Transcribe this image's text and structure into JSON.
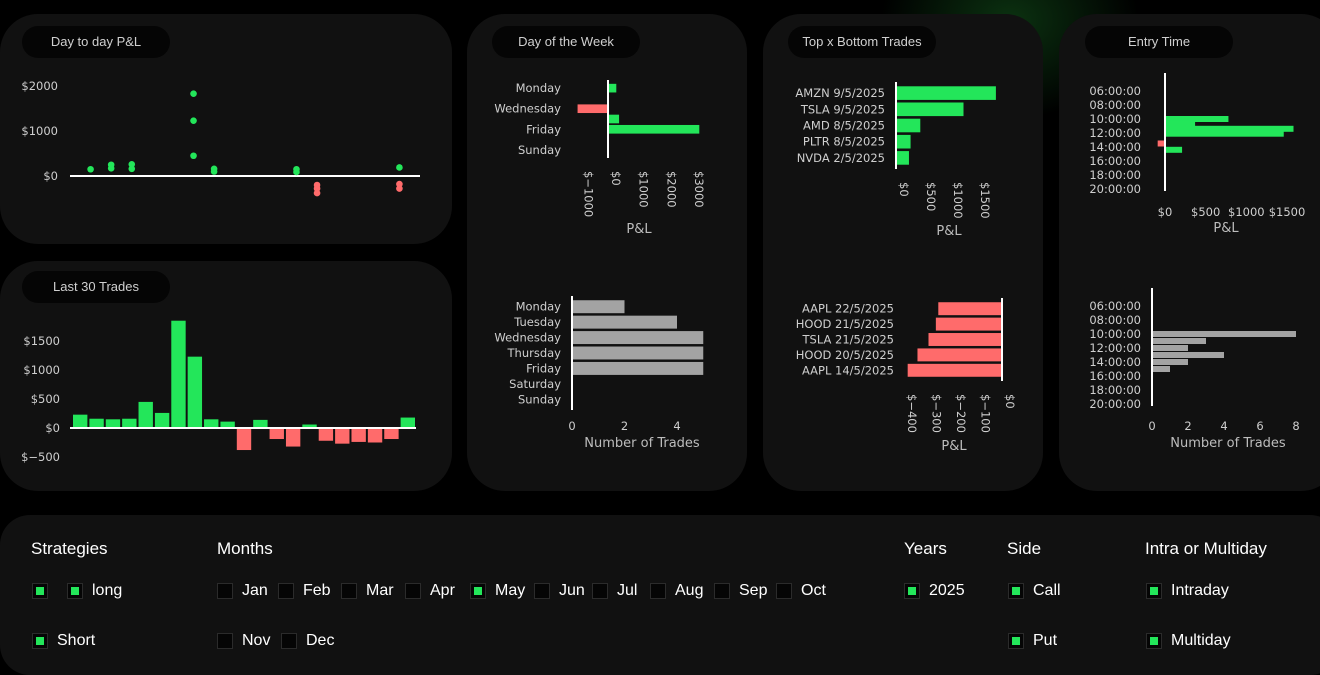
{
  "cards": {
    "day_pnl": {
      "title": "Day to day P&L"
    },
    "last30": {
      "title": "Last 30 Trades"
    },
    "dow": {
      "title": "Day of the Week"
    },
    "topbottom": {
      "title": "Top x Bottom Trades"
    },
    "entry": {
      "title": "Entry Time"
    }
  },
  "colors": {
    "pos": "#23e65a",
    "neg": "#ff6b6b",
    "neutral": "#a3a3a3",
    "axis": "#ffffff"
  },
  "chart_data": [
    {
      "id": "day_pnl",
      "type": "scatter",
      "title": "Day to day P&L",
      "ylim": [
        -600,
        2200
      ],
      "y_ticks": [
        {
          "v": 2000,
          "label": "$2000"
        },
        {
          "v": 1000,
          "label": "$1000"
        },
        {
          "v": 0,
          "label": "$0"
        }
      ],
      "points": [
        {
          "x": 1,
          "y": 150
        },
        {
          "x": 2,
          "y": 250
        },
        {
          "x": 2,
          "y": 170
        },
        {
          "x": 3,
          "y": 260
        },
        {
          "x": 3,
          "y": 160
        },
        {
          "x": 6,
          "y": 1830
        },
        {
          "x": 6,
          "y": 1230
        },
        {
          "x": 6,
          "y": 450
        },
        {
          "x": 7,
          "y": 160
        },
        {
          "x": 7,
          "y": 100
        },
        {
          "x": 11,
          "y": 150
        },
        {
          "x": 11,
          "y": 90
        },
        {
          "x": 12,
          "y": -200
        },
        {
          "x": 12,
          "y": -280
        },
        {
          "x": 12,
          "y": -380
        },
        {
          "x": 16,
          "y": 190
        },
        {
          "x": 16,
          "y": -180
        },
        {
          "x": 16,
          "y": -280
        }
      ],
      "xlim": [
        0,
        17
      ]
    },
    {
      "id": "last30",
      "type": "bar",
      "title": "Last 30 Trades",
      "ylim": [
        -650,
        1850
      ],
      "y_ticks": [
        {
          "v": 1500,
          "label": "$1500"
        },
        {
          "v": 1000,
          "label": "$1000"
        },
        {
          "v": 500,
          "label": "$500"
        },
        {
          "v": 0,
          "label": "$0"
        },
        {
          "v": -500,
          "label": "$−500"
        }
      ],
      "values": [
        230,
        160,
        150,
        160,
        450,
        260,
        1850,
        1230,
        150,
        110,
        -380,
        140,
        -190,
        -320,
        60,
        -220,
        -270,
        -240,
        -250,
        -190,
        180
      ]
    },
    {
      "id": "dow_pnl",
      "type": "bar",
      "orientation": "horizontal",
      "title": "Day of the Week",
      "xlabel": "P&L",
      "xlim": [
        -1300,
        3400
      ],
      "categories": [
        "Monday",
        "Tuesday",
        "Wednesday",
        "Thursday",
        "Friday",
        "Saturday",
        "Sunday"
      ],
      "label_categories": [
        "Monday",
        "Wednesday",
        "Friday",
        "Sunday"
      ],
      "values": [
        300,
        0,
        -1100,
        400,
        3300,
        0,
        0
      ],
      "x_ticks": [
        {
          "v": -1000,
          "label": "$−1000"
        },
        {
          "v": 0,
          "label": "$0"
        },
        {
          "v": 1000,
          "label": "$1000"
        },
        {
          "v": 2000,
          "label": "$2000"
        },
        {
          "v": 3000,
          "label": "$3000"
        }
      ]
    },
    {
      "id": "dow_count",
      "type": "bar",
      "orientation": "horizontal",
      "xlabel": "Number of Trades",
      "xlim": [
        0,
        5.1
      ],
      "categories": [
        "Monday",
        "Tuesday",
        "Wednesday",
        "Thursday",
        "Friday",
        "Saturday",
        "Sunday"
      ],
      "values": [
        2,
        4,
        5,
        5,
        5,
        0,
        0
      ],
      "x_ticks": [
        {
          "v": 0,
          "label": "0"
        },
        {
          "v": 2,
          "label": "2"
        },
        {
          "v": 4,
          "label": "4"
        }
      ]
    },
    {
      "id": "top_trades",
      "type": "bar",
      "orientation": "horizontal",
      "xlabel": "P&L",
      "xlim": [
        0,
        1950
      ],
      "categories": [
        "AMZN 9/5/2025",
        "TSLA 9/5/2025",
        "AMD 8/5/2025",
        "PLTR 8/5/2025",
        "NVDA 2/5/2025"
      ],
      "values": [
        1850,
        1250,
        450,
        270,
        240
      ],
      "x_ticks": [
        {
          "v": 0,
          "label": "$0"
        },
        {
          "v": 500,
          "label": "$500"
        },
        {
          "v": 1000,
          "label": "$1000"
        },
        {
          "v": 1500,
          "label": "$1500"
        }
      ]
    },
    {
      "id": "bottom_trades",
      "type": "bar",
      "orientation": "horizontal",
      "xlabel": "P&L",
      "xlim": [
        -410,
        0
      ],
      "categories": [
        "AAPL 22/5/2025",
        "HOOD 21/5/2025",
        "TSLA 21/5/2025",
        "HOOD 20/5/2025",
        "AAPL 14/5/2025"
      ],
      "values": [
        -260,
        -270,
        -300,
        -345,
        -385
      ],
      "x_ticks": [
        {
          "v": -400,
          "label": "$−400"
        },
        {
          "v": -300,
          "label": "$−300"
        },
        {
          "v": -200,
          "label": "$−200"
        },
        {
          "v": -100,
          "label": "$−100"
        },
        {
          "v": 0,
          "label": "$0"
        }
      ]
    },
    {
      "id": "entry_pnl",
      "type": "bar",
      "orientation": "horizontal",
      "xlabel": "P&L",
      "xlim": [
        -150,
        1650
      ],
      "categories": [
        "06:00:00",
        "08:00:00",
        "10:00:00",
        "12:00:00",
        "14:00:00",
        "16:00:00",
        "18:00:00",
        "20:00:00"
      ],
      "bars": [
        {
          "t": 10.0,
          "v": 780
        },
        {
          "t": 10.6,
          "v": 370
        },
        {
          "t": 11.4,
          "v": 1580
        },
        {
          "t": 12.1,
          "v": 1460
        },
        {
          "t": 13.5,
          "v": -90
        },
        {
          "t": 14.4,
          "v": 210
        }
      ],
      "x_ticks": [
        {
          "v": 0,
          "label": "$0"
        },
        {
          "v": 500,
          "label": "$500"
        },
        {
          "v": 1000,
          "label": "$1000"
        },
        {
          "v": 1500,
          "label": "$1500"
        }
      ]
    },
    {
      "id": "entry_count",
      "type": "bar",
      "orientation": "horizontal",
      "xlabel": "Number of Trades",
      "xlim": [
        0,
        8.3
      ],
      "categories": [
        "06:00:00",
        "08:00:00",
        "10:00:00",
        "12:00:00",
        "14:00:00",
        "16:00:00",
        "18:00:00",
        "20:00:00"
      ],
      "bars": [
        {
          "t": 10.0,
          "v": 8
        },
        {
          "t": 11.0,
          "v": 3
        },
        {
          "t": 12.0,
          "v": 2
        },
        {
          "t": 13.0,
          "v": 4
        },
        {
          "t": 14.0,
          "v": 2
        },
        {
          "t": 15.0,
          "v": 1
        }
      ],
      "x_ticks": [
        {
          "v": 0,
          "label": "0"
        },
        {
          "v": 2,
          "label": "2"
        },
        {
          "v": 4,
          "label": "4"
        },
        {
          "v": 6,
          "label": "6"
        },
        {
          "v": 8,
          "label": "8"
        }
      ]
    }
  ],
  "filters": {
    "strategies": {
      "title": "Strategies",
      "blank": {
        "checked": true
      },
      "long": {
        "label": "long",
        "checked": true
      },
      "short": {
        "label": "Short",
        "checked": true
      }
    },
    "months": {
      "title": "Months",
      "items": [
        {
          "label": "Jan",
          "checked": false
        },
        {
          "label": "Feb",
          "checked": false
        },
        {
          "label": "Mar",
          "checked": false
        },
        {
          "label": "Apr",
          "checked": false
        },
        {
          "label": "May",
          "checked": true
        },
        {
          "label": "Jun",
          "checked": false
        },
        {
          "label": "Jul",
          "checked": false
        },
        {
          "label": "Aug",
          "checked": false
        },
        {
          "label": "Sep",
          "checked": false
        },
        {
          "label": "Oct",
          "checked": false
        },
        {
          "label": "Nov",
          "checked": false
        },
        {
          "label": "Dec",
          "checked": false
        }
      ]
    },
    "years": {
      "title": "Years",
      "items": [
        {
          "label": "2025",
          "checked": true
        }
      ]
    },
    "side": {
      "title": "Side",
      "items": [
        {
          "label": "Call",
          "checked": true
        },
        {
          "label": "Put",
          "checked": true
        }
      ]
    },
    "intra": {
      "title": "Intra or Multiday",
      "items": [
        {
          "label": "Intraday",
          "checked": true
        },
        {
          "label": "Multiday",
          "checked": true
        }
      ]
    }
  }
}
